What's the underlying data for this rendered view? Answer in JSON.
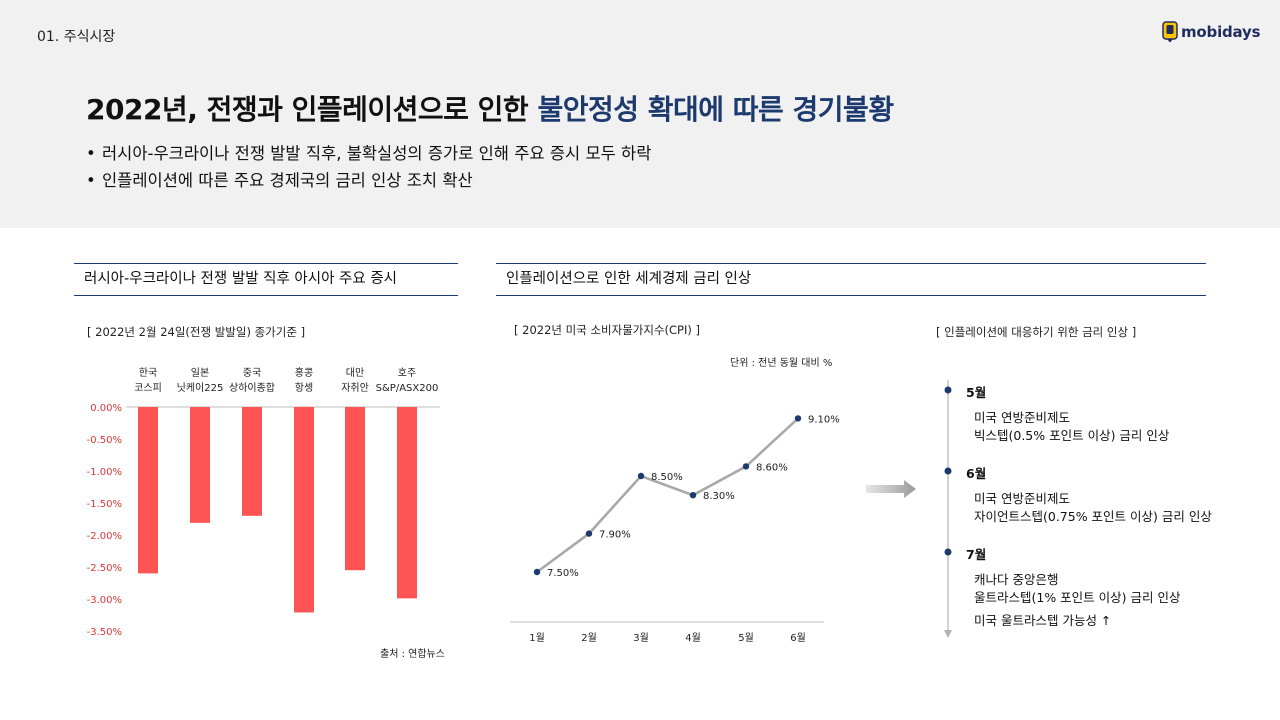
{
  "header": {
    "section_label": "01. 주식시장",
    "logo_text": "mobidays",
    "headline_plain": "2022년, 전쟁과 인플레이션으로 인한 ",
    "headline_highlight": "불안정성 확대에 따른 경기불황",
    "bullets": [
      "러시아-우크라이나 전쟁 발발 직후, 불확실성의 증가로 인해 주요 증시 모두 하락",
      "인플레이션에 따른 주요 경제국의 금리 인상 조치 확산"
    ]
  },
  "left_panel": {
    "title": "러시아-우크라이나 전쟁 발발 직후 아시아 주요 증시",
    "caption": "[ 2022년 2월 24일(전쟁 발발일) 종가기준 ]",
    "source": "출처 : 연합뉴스"
  },
  "right_panel": {
    "title": "인플레이션으로 인한 세계경제 금리 인상",
    "cpi_caption": "[ 2022년 미국 소비자물가지수(CPI) ]",
    "unit": "단위 : 전년 동월 대비 %",
    "timeline_caption": "[ 인플레이션에 대응하기 위한 금리 인상 ]",
    "timeline": [
      {
        "month": "5월",
        "lines": [
          "미국 연방준비제도",
          "빅스텝(0.5% 포인트 이상) 금리 인상"
        ]
      },
      {
        "month": "6월",
        "lines": [
          "미국 연방준비제도",
          "자이언트스텝(0.75% 포인트 이상) 금리 인상"
        ]
      },
      {
        "month": "7월",
        "lines": [
          "캐나다 중앙은행",
          "울트라스텝(1% 포인트 이상) 금리 인상",
          "미국 울트라스텝 가능성 ↑"
        ]
      }
    ]
  },
  "chart_data": [
    {
      "type": "bar",
      "categories": [
        [
          "한국",
          "코스피"
        ],
        [
          "일본",
          "닛케이225"
        ],
        [
          "중국",
          "상하이종합"
        ],
        [
          "홍콩",
          "항셍"
        ],
        [
          "대만",
          "자취안"
        ],
        [
          "호주",
          "S&P/ASX200"
        ]
      ],
      "values": [
        -2.6,
        -1.81,
        -1.7,
        -3.21,
        -2.55,
        -2.99
      ],
      "y_ticks": [
        "0.00%",
        "-0.50%",
        "-1.00%",
        "-1.50%",
        "-2.00%",
        "-2.50%",
        "-3.00%",
        "-3.50%"
      ],
      "ylim": [
        -3.5,
        0
      ],
      "color": "#ff5454"
    },
    {
      "type": "line",
      "categories": [
        "1월",
        "2월",
        "3월",
        "4월",
        "5월",
        "6월"
      ],
      "values": [
        7.5,
        7.9,
        8.5,
        8.3,
        8.6,
        9.1
      ],
      "labels": [
        "7.50%",
        "7.90%",
        "8.50%",
        "8.30%",
        "8.60%",
        "9.10%"
      ],
      "ylim": [
        7.0,
        9.5
      ],
      "line_color": "#a9a9a9",
      "marker_color": "#1d3a6e"
    }
  ],
  "colors": {
    "accent": "#1d3a6e",
    "bar": "#ff5454",
    "band": "#f1f1f1"
  }
}
